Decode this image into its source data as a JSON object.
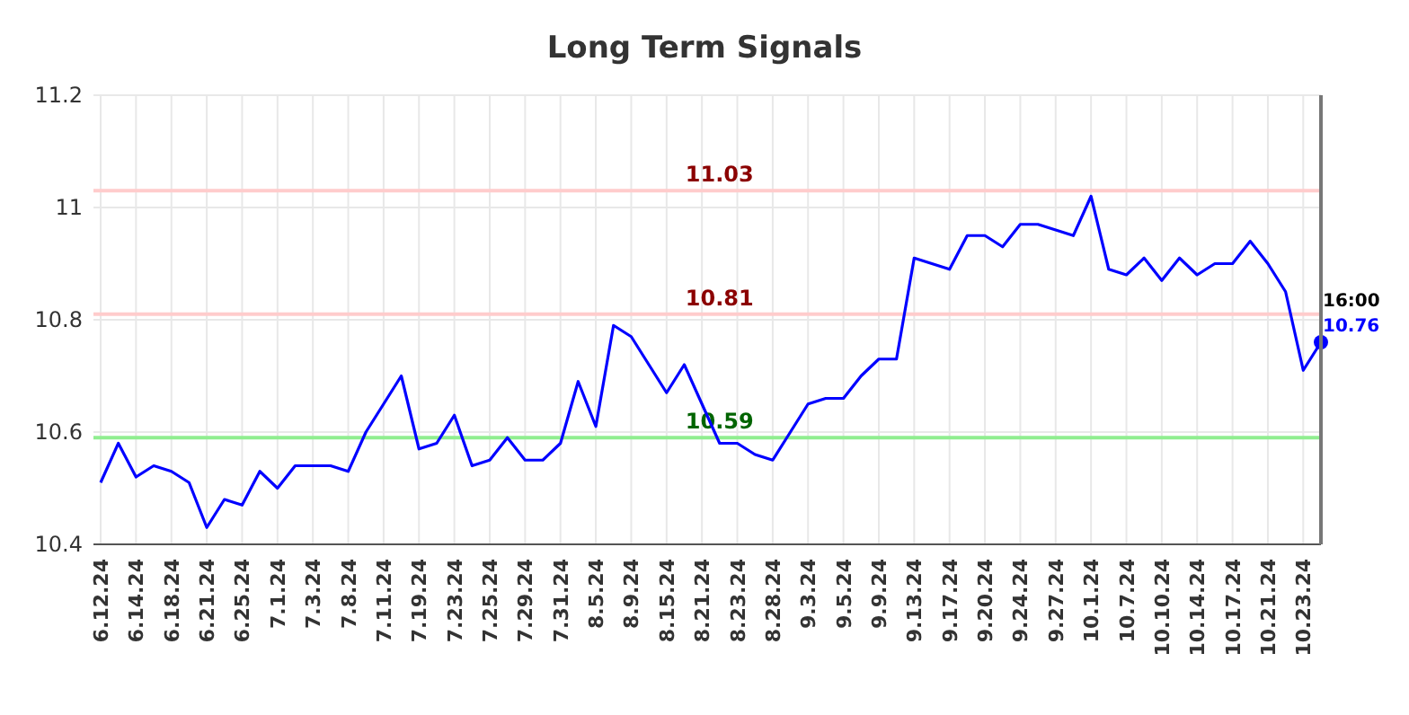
{
  "chart_data": {
    "type": "line",
    "title": "Long Term Signals",
    "categories": [
      "6.12.24",
      null,
      "6.14.24",
      null,
      "6.18.24",
      null,
      "6.21.24",
      null,
      "6.25.24",
      null,
      "7.1.24",
      null,
      "7.3.24",
      null,
      "7.8.24",
      null,
      "7.11.24",
      null,
      "7.19.24",
      null,
      "7.23.24",
      null,
      "7.25.24",
      null,
      "7.29.24",
      null,
      "7.31.24",
      null,
      "8.5.24",
      null,
      "8.9.24",
      null,
      "8.15.24",
      null,
      "8.21.24",
      null,
      "8.23.24",
      null,
      "8.28.24",
      null,
      "9.3.24",
      null,
      "9.5.24",
      null,
      "9.9.24",
      null,
      "9.13.24",
      null,
      "9.17.24",
      null,
      "9.20.24",
      null,
      "9.24.24",
      null,
      "9.27.24",
      null,
      "10.1.24",
      null,
      "10.7.24",
      null,
      "10.10.24",
      null,
      "10.14.24",
      null,
      "10.17.24",
      null,
      "10.21.24",
      null,
      "10.23.24",
      null
    ],
    "series": [
      {
        "color": "#0000ff",
        "values": [
          10.51,
          10.58,
          10.52,
          10.54,
          10.53,
          10.51,
          10.43,
          10.48,
          10.47,
          10.53,
          10.5,
          10.54,
          10.54,
          10.54,
          10.53,
          10.6,
          10.65,
          10.7,
          10.57,
          10.58,
          10.63,
          10.54,
          10.55,
          10.59,
          10.55,
          10.55,
          10.58,
          10.69,
          10.61,
          10.79,
          10.77,
          10.72,
          10.67,
          10.72,
          10.65,
          10.58,
          10.58,
          10.56,
          10.55,
          10.6,
          10.65,
          10.66,
          10.66,
          10.7,
          10.73,
          10.73,
          10.91,
          10.9,
          10.89,
          10.95,
          10.95,
          10.93,
          10.97,
          10.97,
          10.96,
          10.95,
          11.02,
          10.89,
          10.88,
          10.91,
          10.87,
          10.91,
          10.88,
          10.9,
          10.9,
          10.94,
          10.9,
          10.85,
          10.71,
          10.76
        ]
      }
    ],
    "ylim": [
      10.4,
      11.2
    ],
    "yticks": [
      10.4,
      10.6,
      10.8,
      11,
      11.2
    ],
    "grid": true,
    "marker": "none",
    "line_style": "solid",
    "ref_lines": [
      {
        "axis": "y",
        "value": 11.03,
        "label": "11.03",
        "color": "#ffcccc"
      },
      {
        "axis": "y",
        "value": 10.81,
        "label": "10.81",
        "color": "#ffcccc"
      },
      {
        "axis": "y",
        "value": 10.59,
        "label": "10.59",
        "color": "#90ee90"
      }
    ],
    "annotations": [
      "16:00",
      "10.76"
    ]
  }
}
